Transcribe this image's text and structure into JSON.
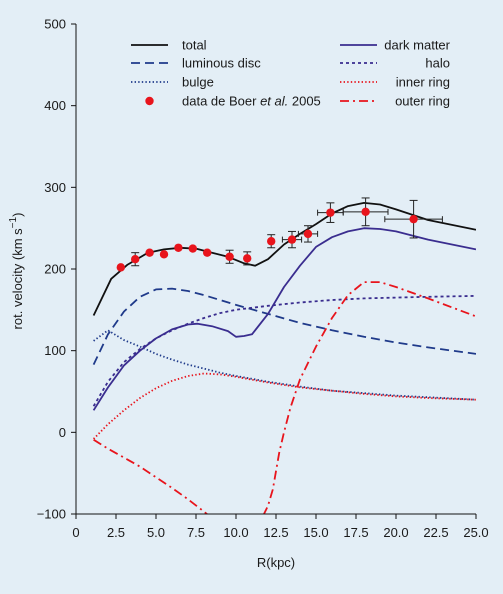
{
  "chart_data": {
    "type": "line",
    "xlabel": "R(kpc)",
    "ylabel": "rot. velocity (km s",
    "ylabel_sup": "−1",
    "ylabel_close": ")",
    "xlim": [
      0,
      25
    ],
    "ylim": [
      -100,
      500
    ],
    "x_ticks": [
      0,
      2.5,
      5,
      7.5,
      10,
      12.5,
      15,
      17.5,
      20,
      22.5,
      25
    ],
    "x_tick_labels": [
      "0",
      "2.5",
      "5.0",
      "7.5",
      "10.0",
      "12.5",
      "15.0",
      "17.5",
      "20.0",
      "22.5",
      "25.0"
    ],
    "y_ticks": [
      -100,
      0,
      100,
      200,
      300,
      400,
      500
    ],
    "y_tick_labels": [
      "−100",
      "0",
      "100",
      "200",
      "300",
      "400",
      "500"
    ],
    "legend_position": "top",
    "grid": false,
    "series": [
      {
        "name": "total",
        "color": "#111111",
        "dash": "solid",
        "legend_col": 0,
        "points": [
          [
            1.1,
            143
          ],
          [
            2.2,
            188
          ],
          [
            3.2,
            205
          ],
          [
            4.5,
            220
          ],
          [
            5.5,
            224
          ],
          [
            6.5,
            226
          ],
          [
            7.5,
            225
          ],
          [
            8.5,
            220
          ],
          [
            9.5,
            215
          ],
          [
            10.5,
            207
          ],
          [
            11.2,
            204
          ],
          [
            12,
            212
          ],
          [
            13,
            230
          ],
          [
            14,
            243
          ],
          [
            15,
            255
          ],
          [
            16,
            268
          ],
          [
            17,
            277
          ],
          [
            18,
            281
          ],
          [
            19,
            279
          ],
          [
            20,
            273
          ],
          [
            22,
            260
          ],
          [
            25,
            248
          ]
        ]
      },
      {
        "name": "luminous disc",
        "color": "#1f3a8a",
        "dash": "long-dash",
        "legend_col": 0,
        "points": [
          [
            1.1,
            83
          ],
          [
            2,
            120
          ],
          [
            3,
            148
          ],
          [
            4,
            166
          ],
          [
            5,
            175
          ],
          [
            6,
            176
          ],
          [
            7,
            173
          ],
          [
            8,
            168
          ],
          [
            9,
            162
          ],
          [
            10,
            156
          ],
          [
            12,
            145
          ],
          [
            14,
            134
          ],
          [
            16,
            125
          ],
          [
            18,
            117
          ],
          [
            20,
            110
          ],
          [
            22,
            104
          ],
          [
            25,
            96
          ]
        ]
      },
      {
        "name": "bulge",
        "color": "#1f3a8a",
        "dash": "dotted",
        "legend_col": 0,
        "points": [
          [
            1.1,
            112
          ],
          [
            2,
            125
          ],
          [
            3,
            113
          ],
          [
            4,
            105
          ],
          [
            5,
            96
          ],
          [
            6,
            89
          ],
          [
            7,
            83
          ],
          [
            8,
            78
          ],
          [
            9,
            73
          ],
          [
            10,
            69
          ],
          [
            12,
            62
          ],
          [
            14,
            56
          ],
          [
            16,
            51
          ],
          [
            18,
            48
          ],
          [
            20,
            45
          ],
          [
            22,
            43
          ],
          [
            25,
            40
          ]
        ]
      },
      {
        "name": "data de Boer et al. 2005",
        "name_plain": "data de Boer ",
        "name_italic": "et al.",
        "name_tail": " 2005",
        "color": "#e8141c",
        "dash": "points",
        "legend_col": 0,
        "points": [
          {
            "x": 2.8,
            "y": 202,
            "ey": 0,
            "ex": 0
          },
          {
            "x": 3.7,
            "y": 212,
            "ey": 8,
            "ex": 0
          },
          {
            "x": 4.6,
            "y": 220,
            "ey": 0,
            "ex": 0
          },
          {
            "x": 5.5,
            "y": 218,
            "ey": 0,
            "ex": 0
          },
          {
            "x": 6.4,
            "y": 226,
            "ey": 0,
            "ex": 0
          },
          {
            "x": 7.3,
            "y": 225,
            "ey": 0,
            "ex": 0
          },
          {
            "x": 8.2,
            "y": 220,
            "ey": 0,
            "ex": 0
          },
          {
            "x": 9.6,
            "y": 215,
            "ey": 8,
            "ex": 0
          },
          {
            "x": 10.7,
            "y": 213,
            "ey": 8,
            "ex": 0
          },
          {
            "x": 12.2,
            "y": 234,
            "ey": 8,
            "ex": 0
          },
          {
            "x": 13.5,
            "y": 236,
            "ey": 10,
            "ex": 0.6
          },
          {
            "x": 14.5,
            "y": 243,
            "ey": 10,
            "ex": 0.6
          },
          {
            "x": 15.9,
            "y": 269,
            "ey": 12,
            "ex": 0.8
          },
          {
            "x": 18.1,
            "y": 270,
            "ey": 17,
            "ex": 1.4
          },
          {
            "x": 21.1,
            "y": 261,
            "ey": 23,
            "ex": 1.8
          }
        ]
      },
      {
        "name": "dark matter",
        "color": "#3a2d8f",
        "dash": "solid",
        "legend_col": 1,
        "points": [
          [
            1.1,
            27
          ],
          [
            2,
            55
          ],
          [
            3,
            82
          ],
          [
            4,
            100
          ],
          [
            5,
            115
          ],
          [
            6,
            126
          ],
          [
            7,
            132
          ],
          [
            7.6,
            133
          ],
          [
            8.5,
            130
          ],
          [
            9.5,
            124
          ],
          [
            10,
            117
          ],
          [
            10.5,
            118
          ],
          [
            11,
            120
          ],
          [
            12,
            145
          ],
          [
            13,
            178
          ],
          [
            14,
            204
          ],
          [
            15,
            227
          ],
          [
            16,
            239
          ],
          [
            17,
            246
          ],
          [
            18,
            250
          ],
          [
            19,
            249
          ],
          [
            20,
            246
          ],
          [
            22,
            236
          ],
          [
            25,
            224
          ]
        ]
      },
      {
        "name": "halo",
        "color": "#3a2d8f",
        "dash": "short-dash",
        "legend_col": 1,
        "points": [
          [
            1.1,
            32
          ],
          [
            2,
            62
          ],
          [
            3,
            86
          ],
          [
            4,
            102
          ],
          [
            5,
            115
          ],
          [
            6,
            125
          ],
          [
            7,
            133
          ],
          [
            8,
            140
          ],
          [
            9,
            146
          ],
          [
            10,
            150
          ],
          [
            12,
            155
          ],
          [
            14,
            159
          ],
          [
            16,
            162
          ],
          [
            18,
            164
          ],
          [
            20,
            165
          ],
          [
            22,
            166
          ],
          [
            25,
            167
          ]
        ]
      },
      {
        "name": "inner ring",
        "color": "#e8141c",
        "dash": "dotted",
        "legend_col": 1,
        "points": [
          [
            1.1,
            -8
          ],
          [
            2,
            10
          ],
          [
            3,
            27
          ],
          [
            4,
            42
          ],
          [
            5,
            54
          ],
          [
            6,
            63
          ],
          [
            7,
            69
          ],
          [
            8,
            72
          ],
          [
            9,
            71
          ],
          [
            10,
            68
          ],
          [
            12,
            61
          ],
          [
            14,
            55
          ],
          [
            16,
            51
          ],
          [
            18,
            47
          ],
          [
            20,
            44
          ],
          [
            22,
            42
          ],
          [
            25,
            40
          ]
        ]
      },
      {
        "name": "outer ring",
        "color": "#e8141c",
        "dash": "dash-dot",
        "legend_col": 1,
        "points": [
          [
            1.1,
            -9
          ],
          [
            2,
            -20
          ],
          [
            3,
            -31
          ],
          [
            4,
            -42
          ],
          [
            5,
            -55
          ],
          [
            6,
            -68
          ],
          [
            7,
            -82
          ],
          [
            8,
            -97
          ],
          [
            8.3,
            -102
          ],
          null,
          [
            11.7,
            -102
          ],
          [
            12,
            -90
          ],
          [
            12.3,
            -70
          ],
          [
            12.7,
            -25
          ],
          [
            13,
            0
          ],
          [
            13.4,
            30
          ],
          [
            14,
            65
          ],
          [
            15,
            105
          ],
          [
            16,
            140
          ],
          [
            17,
            168
          ],
          [
            18,
            184
          ],
          [
            19,
            184
          ],
          [
            20,
            178
          ],
          [
            22,
            164
          ],
          [
            25,
            142
          ]
        ]
      }
    ]
  }
}
